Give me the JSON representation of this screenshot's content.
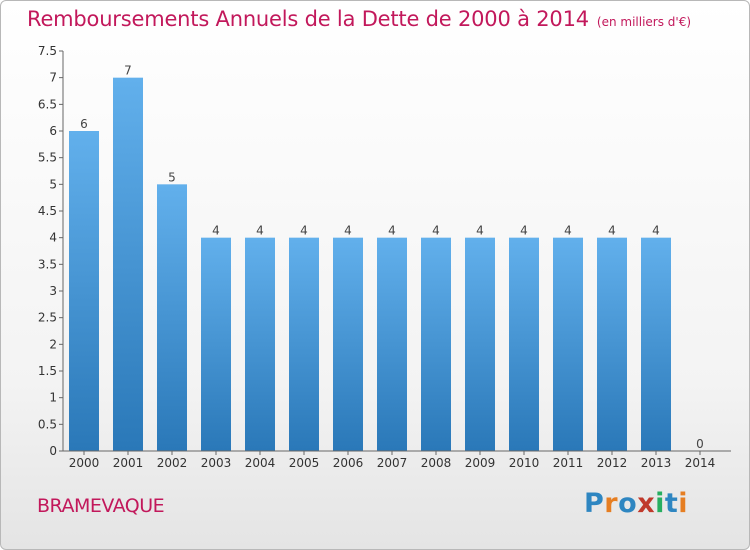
{
  "header": {
    "title": "Remboursements Annuels de la Dette de 2000 à 2014",
    "unit": "(en milliers d'€)"
  },
  "footer": {
    "commune": "BRAMEVAQUE",
    "logo": "Proxiti"
  },
  "colors": {
    "title": "#c2185b",
    "bar_top": "#62b0ec",
    "bar_bottom": "#2a78b8",
    "logo_letters": [
      "#2e86c1",
      "#e67e22",
      "#2e86c1",
      "#c0392b",
      "#27ae60",
      "#2e86c1",
      "#e67e22"
    ]
  },
  "chart_data": {
    "type": "bar",
    "title": "Remboursements Annuels de la Dette de 2000 à 2014",
    "categories": [
      "2000",
      "2001",
      "2002",
      "2003",
      "2004",
      "2005",
      "2006",
      "2007",
      "2008",
      "2009",
      "2010",
      "2011",
      "2012",
      "2013",
      "2014"
    ],
    "values": [
      6,
      7,
      5,
      4,
      4,
      4,
      4,
      4,
      4,
      4,
      4,
      4,
      4,
      4,
      0
    ],
    "data_labels": [
      "6",
      "7",
      "5",
      "4",
      "4",
      "4",
      "4",
      "4",
      "4",
      "4",
      "4",
      "4",
      "4",
      "4",
      "0"
    ],
    "y_ticks": [
      0,
      0.5,
      1,
      1.5,
      2,
      2.5,
      3,
      3.5,
      4,
      4.5,
      5,
      5.5,
      6,
      6.5,
      7,
      7.5
    ],
    "y_tick_labels": [
      "0",
      "0.5",
      "1",
      "1.5",
      "2",
      "2.5",
      "3",
      "3.5",
      "4",
      "4.5",
      "5",
      "5.5",
      "6",
      "6.5",
      "7",
      "7.5"
    ],
    "ylim": [
      0,
      7.5
    ],
    "grid": false,
    "xlabel": "",
    "ylabel": ""
  }
}
